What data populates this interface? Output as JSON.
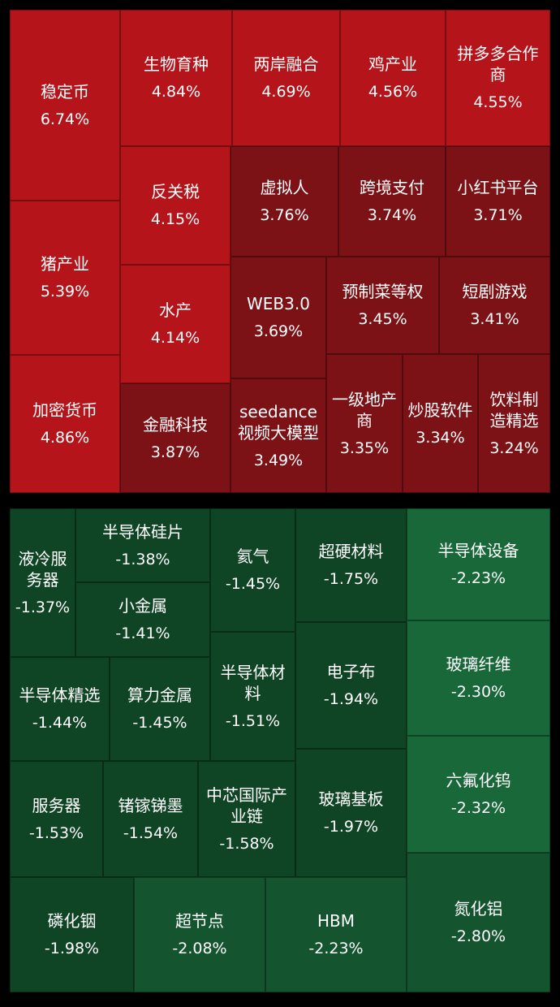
{
  "gainers": [
    {
      "name": "稳定币",
      "change": "6.74%"
    },
    {
      "name": "猪产业",
      "change": "5.39%"
    },
    {
      "name": "加密货币",
      "change": "4.86%"
    },
    {
      "name": "生物育种",
      "change": "4.84%"
    },
    {
      "name": "两岸融合",
      "change": "4.69%"
    },
    {
      "name": "鸡产业",
      "change": "4.56%"
    },
    {
      "name": "拼多多合作商",
      "change": "4.55%"
    },
    {
      "name": "反关税",
      "change": "4.15%"
    },
    {
      "name": "水产",
      "change": "4.14%"
    },
    {
      "name": "金融科技",
      "change": "3.87%"
    },
    {
      "name": "虚拟人",
      "change": "3.76%"
    },
    {
      "name": "跨境支付",
      "change": "3.74%"
    },
    {
      "name": "小红书平台",
      "change": "3.71%"
    },
    {
      "name": "WEB3.0",
      "change": "3.69%"
    },
    {
      "name": "预制菜等权",
      "change": "3.45%"
    },
    {
      "name": "短剧游戏",
      "change": "3.41%"
    },
    {
      "name": "seedance视频大模型",
      "change": "3.49%"
    },
    {
      "name": "一级地产商",
      "change": "3.35%"
    },
    {
      "name": "炒股软件",
      "change": "3.34%"
    },
    {
      "name": "饮料制造精选",
      "change": "3.24%"
    }
  ],
  "losers": [
    {
      "name": "液冷服务器",
      "change": "-1.37%"
    },
    {
      "name": "半导体硅片",
      "change": "-1.38%"
    },
    {
      "name": "小金属",
      "change": "-1.41%"
    },
    {
      "name": "氦气",
      "change": "-1.45%"
    },
    {
      "name": "超硬材料",
      "change": "-1.75%"
    },
    {
      "name": "半导体设备",
      "change": "-2.23%"
    },
    {
      "name": "半导体精选",
      "change": "-1.44%"
    },
    {
      "name": "算力金属",
      "change": "-1.45%"
    },
    {
      "name": "半导体材料",
      "change": "-1.51%"
    },
    {
      "name": "电子布",
      "change": "-1.94%"
    },
    {
      "name": "玻璃纤维",
      "change": "-2.30%"
    },
    {
      "name": "服务器",
      "change": "-1.53%"
    },
    {
      "name": "锗镓锑墨",
      "change": "-1.54%"
    },
    {
      "name": "中芯国际产业链",
      "change": "-1.58%"
    },
    {
      "name": "玻璃基板",
      "change": "-1.97%"
    },
    {
      "name": "六氟化钨",
      "change": "-2.32%"
    },
    {
      "name": "磷化铟",
      "change": "-1.98%"
    },
    {
      "name": "超节点",
      "change": "-2.08%"
    },
    {
      "name": "HBM",
      "change": "-2.23%"
    },
    {
      "name": "氮化铝",
      "change": "-2.80%"
    }
  ]
}
